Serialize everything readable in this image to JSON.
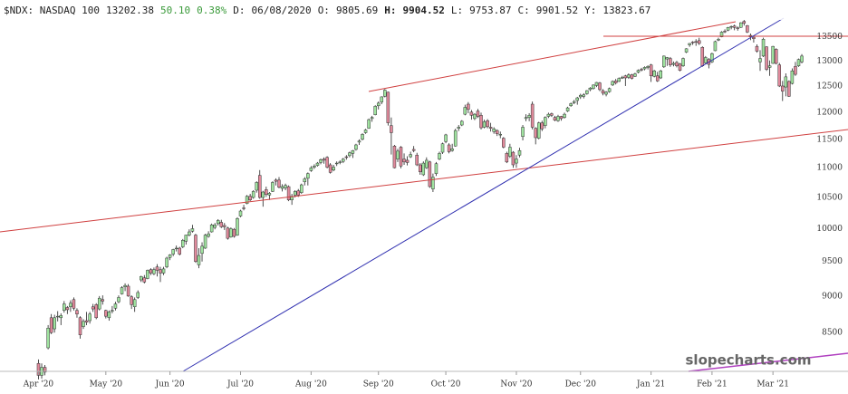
{
  "chart_data": {
    "type": "candlestick",
    "header": [
      "$NDX: NASDAQ 100",
      "13202.38",
      "50.10",
      "0.38%",
      "D:",
      "06/08/2020",
      "O:",
      "9805.69",
      "H:",
      "9904.52",
      "L:",
      "9753.87",
      "C:",
      "9901.52",
      "Y:",
      "13823.67"
    ],
    "watermark": "slopecharts.com",
    "up_color": "#9fe39f",
    "down_color": "#e0899b",
    "log_scale": true,
    "grid": false,
    "ylim": [
      8000,
      14300
    ],
    "yticks": [
      13500,
      13000,
      12500,
      12000,
      11500,
      11000,
      10500,
      10000,
      9500,
      9000,
      8500
    ],
    "xlim": [
      -12,
      252.4
    ],
    "xticks": [
      {
        "value": 0,
        "label": "Apr '20"
      },
      {
        "value": 21,
        "label": "May '20"
      },
      {
        "value": 41,
        "label": "Jun '20"
      },
      {
        "value": 63,
        "label": "Jul '20"
      },
      {
        "value": 85,
        "label": "Aug '20"
      },
      {
        "value": 106,
        "label": "Sep '20"
      },
      {
        "value": 127,
        "label": "Oct '20"
      },
      {
        "value": 149,
        "label": "Nov '20"
      },
      {
        "value": 169,
        "label": "Dec '20"
      },
      {
        "value": 191,
        "label": "Jan '21"
      },
      {
        "value": 210,
        "label": "Feb '21"
      },
      {
        "value": 229,
        "label": "Mar '21"
      }
    ],
    "candles": [
      [
        8100,
        8150,
        7900,
        7950
      ],
      [
        7950,
        8100,
        7910,
        8050
      ],
      [
        8050,
        8080,
        7950,
        7990
      ],
      [
        8300,
        8600,
        8280,
        8560
      ],
      [
        8700,
        8750,
        8480,
        8500
      ],
      [
        8550,
        8740,
        8500,
        8700
      ],
      [
        8720,
        8790,
        8650,
        8720
      ],
      [
        8700,
        8760,
        8600,
        8730
      ],
      [
        8800,
        8930,
        8770,
        8890
      ],
      [
        8840,
        8860,
        8750,
        8810
      ],
      [
        8850,
        8940,
        8780,
        8900
      ],
      [
        8950,
        8980,
        8800,
        8830
      ],
      [
        8800,
        8830,
        8700,
        8750
      ],
      [
        8700,
        8720,
        8420,
        8470
      ],
      [
        8580,
        8680,
        8550,
        8650
      ],
      [
        8660,
        8780,
        8600,
        8640
      ],
      [
        8660,
        8780,
        8620,
        8750
      ],
      [
        8850,
        8890,
        8780,
        8820
      ],
      [
        8880,
        8900,
        8680,
        8700
      ],
      [
        8820,
        9000,
        8800,
        8970
      ],
      [
        8950,
        9010,
        8880,
        8930
      ],
      [
        8800,
        8810,
        8690,
        8720
      ],
      [
        8700,
        8800,
        8660,
        8780
      ],
      [
        8800,
        8860,
        8760,
        8800
      ],
      [
        8830,
        8920,
        8800,
        8890
      ],
      [
        8920,
        9010,
        8900,
        8980
      ],
      [
        9030,
        9140,
        9020,
        9120
      ],
      [
        9130,
        9180,
        9070,
        9150
      ],
      [
        9140,
        9170,
        8990,
        9000
      ],
      [
        8990,
        9010,
        8820,
        8880
      ],
      [
        8850,
        8980,
        8780,
        8950
      ],
      [
        8980,
        9080,
        8960,
        9050
      ],
      [
        9230,
        9290,
        9200,
        9280
      ],
      [
        9260,
        9300,
        9180,
        9200
      ],
      [
        9250,
        9380,
        9240,
        9370
      ],
      [
        9380,
        9400,
        9300,
        9330
      ],
      [
        9320,
        9410,
        9300,
        9380
      ],
      [
        9420,
        9460,
        9280,
        9370
      ],
      [
        9380,
        9420,
        9200,
        9330
      ],
      [
        9330,
        9420,
        9300,
        9390
      ],
      [
        9420,
        9570,
        9400,
        9550
      ],
      [
        9560,
        9610,
        9520,
        9600
      ],
      [
        9610,
        9690,
        9580,
        9680
      ],
      [
        9690,
        9740,
        9650,
        9700
      ],
      [
        9700,
        9720,
        9590,
        9610
      ],
      [
        9720,
        9840,
        9700,
        9820
      ],
      [
        9805.69,
        9904.52,
        9753.87,
        9901.52
      ],
      [
        9900,
        9990,
        9880,
        9950
      ],
      [
        9960,
        10060,
        9940,
        10000
      ],
      [
        9900,
        9920,
        9480,
        9500
      ],
      [
        9450,
        9700,
        9400,
        9590
      ],
      [
        9620,
        9790,
        9500,
        9730
      ],
      [
        9700,
        9920,
        9690,
        9900
      ],
      [
        9880,
        9960,
        9860,
        9920
      ],
      [
        9950,
        10080,
        9940,
        10060
      ],
      [
        10020,
        10090,
        9990,
        10060
      ],
      [
        10080,
        10150,
        10050,
        10130
      ],
      [
        10100,
        10140,
        10010,
        10030
      ],
      [
        10050,
        10090,
        9980,
        10030
      ],
      [
        10010,
        10030,
        9830,
        9850
      ],
      [
        9870,
        10020,
        9860,
        10000
      ],
      [
        9990,
        10010,
        9860,
        9880
      ],
      [
        9900,
        10180,
        9890,
        10160
      ],
      [
        10200,
        10300,
        10180,
        10280
      ],
      [
        10330,
        10380,
        10290,
        10320
      ],
      [
        10400,
        10540,
        10390,
        10520
      ],
      [
        10520,
        10560,
        10440,
        10460
      ],
      [
        10500,
        10620,
        10480,
        10600
      ],
      [
        10620,
        10770,
        10580,
        10750
      ],
      [
        10870,
        10960,
        10480,
        10500
      ],
      [
        10500,
        10610,
        10350,
        10590
      ],
      [
        10630,
        10680,
        10510,
        10550
      ],
      [
        10540,
        10590,
        10460,
        10570
      ],
      [
        10600,
        10770,
        10590,
        10750
      ],
      [
        10790,
        10820,
        10700,
        10770
      ],
      [
        10790,
        10840,
        10650,
        10670
      ],
      [
        10650,
        10720,
        10600,
        10680
      ],
      [
        10660,
        10730,
        10620,
        10700
      ],
      [
        10680,
        10700,
        10440,
        10460
      ],
      [
        10460,
        10560,
        10380,
        10520
      ],
      [
        10540,
        10620,
        10500,
        10600
      ],
      [
        10610,
        10640,
        10510,
        10540
      ],
      [
        10580,
        10730,
        10560,
        10710
      ],
      [
        10760,
        10840,
        10700,
        10810
      ],
      [
        10820,
        10920,
        10700,
        10900
      ],
      [
        10950,
        11030,
        10930,
        11000
      ],
      [
        11010,
        11060,
        10980,
        11030
      ],
      [
        11040,
        11100,
        11020,
        11080
      ],
      [
        11090,
        11160,
        11060,
        11140
      ],
      [
        11150,
        11180,
        11070,
        11130
      ],
      [
        11180,
        11200,
        10990,
        11010
      ],
      [
        11050,
        11080,
        10900,
        10920
      ],
      [
        10960,
        11050,
        10940,
        11010
      ],
      [
        11070,
        11110,
        11030,
        11080
      ],
      [
        11100,
        11130,
        11060,
        11100
      ],
      [
        11110,
        11170,
        11080,
        11150
      ],
      [
        11190,
        11220,
        11140,
        11180
      ],
      [
        11210,
        11280,
        11180,
        11260
      ],
      [
        11250,
        11310,
        11170,
        11300
      ],
      [
        11320,
        11420,
        11300,
        11400
      ],
      [
        11450,
        11500,
        11400,
        11470
      ],
      [
        11500,
        11610,
        11480,
        11590
      ],
      [
        11620,
        11690,
        11600,
        11670
      ],
      [
        11700,
        11880,
        11690,
        11860
      ],
      [
        11880,
        11930,
        11820,
        11900
      ],
      [
        11950,
        12130,
        11940,
        12110
      ],
      [
        12120,
        12200,
        12050,
        12170
      ],
      [
        12190,
        12300,
        12150,
        12290
      ],
      [
        12300,
        12440,
        12280,
        12420
      ],
      [
        12380,
        12390,
        11750,
        11800
      ],
      [
        11750,
        11900,
        11230,
        11620
      ],
      [
        11380,
        11400,
        10990,
        11000
      ],
      [
        11150,
        11330,
        11100,
        11290
      ],
      [
        11360,
        11380,
        10990,
        11030
      ],
      [
        11150,
        11250,
        11050,
        11100
      ],
      [
        11130,
        11200,
        11040,
        11090
      ],
      [
        11190,
        11280,
        11170,
        11230
      ],
      [
        11320,
        11380,
        11270,
        11300
      ],
      [
        11220,
        11260,
        11030,
        11050
      ],
      [
        11050,
        11080,
        10880,
        10930
      ],
      [
        10880,
        11110,
        10860,
        11080
      ],
      [
        11000,
        11180,
        10980,
        11130
      ],
      [
        11100,
        11120,
        10660,
        10680
      ],
      [
        10640,
        10900,
        10590,
        10840
      ],
      [
        10900,
        11100,
        10860,
        11070
      ],
      [
        11150,
        11280,
        11130,
        11250
      ],
      [
        11270,
        11440,
        11240,
        11420
      ],
      [
        11460,
        11600,
        11430,
        11580
      ],
      [
        11400,
        11430,
        11250,
        11280
      ],
      [
        11300,
        11420,
        11280,
        11330
      ],
      [
        11380,
        11690,
        11370,
        11660
      ],
      [
        11700,
        11760,
        11650,
        11720
      ],
      [
        11760,
        11850,
        11740,
        11830
      ],
      [
        11960,
        12140,
        11940,
        12090
      ],
      [
        12150,
        12190,
        11980,
        12050
      ],
      [
        12000,
        12040,
        11860,
        11940
      ],
      [
        11880,
        11980,
        11850,
        11960
      ],
      [
        12020,
        12060,
        11890,
        11920
      ],
      [
        11940,
        11990,
        11680,
        11710
      ],
      [
        11720,
        11860,
        11700,
        11820
      ],
      [
        11840,
        11870,
        11700,
        11730
      ],
      [
        11720,
        11800,
        11640,
        11700
      ],
      [
        11640,
        11720,
        11600,
        11690
      ],
      [
        11660,
        11680,
        11560,
        11600
      ],
      [
        11580,
        11640,
        11520,
        11590
      ],
      [
        11520,
        11540,
        11340,
        11360
      ],
      [
        11250,
        11280,
        11080,
        11100
      ],
      [
        11200,
        11420,
        11170,
        11360
      ],
      [
        11270,
        11290,
        11000,
        11050
      ],
      [
        11080,
        11220,
        11000,
        11150
      ],
      [
        11220,
        11350,
        11180,
        11300
      ],
      [
        11550,
        11760,
        11480,
        11720
      ],
      [
        11880,
        11960,
        11830,
        11900
      ],
      [
        11900,
        11980,
        11830,
        11940
      ],
      [
        12150,
        12200,
        11680,
        11720
      ],
      [
        11700,
        11720,
        11410,
        11530
      ],
      [
        11520,
        11820,
        11500,
        11800
      ],
      [
        11800,
        11840,
        11650,
        11690
      ],
      [
        11750,
        11920,
        11700,
        11900
      ],
      [
        11920,
        11990,
        11890,
        11960
      ],
      [
        11970,
        11990,
        11910,
        11940
      ],
      [
        11900,
        11930,
        11830,
        11850
      ],
      [
        11840,
        11950,
        11820,
        11920
      ],
      [
        11920,
        11930,
        11840,
        11880
      ],
      [
        11900,
        11990,
        11880,
        11960
      ],
      [
        12020,
        12100,
        12000,
        12080
      ],
      [
        12120,
        12180,
        12100,
        12160
      ],
      [
        12180,
        12230,
        12150,
        12200
      ],
      [
        12220,
        12290,
        12140,
        12270
      ],
      [
        12290,
        12350,
        12250,
        12320
      ],
      [
        12300,
        12360,
        12260,
        12330
      ],
      [
        12350,
        12420,
        12330,
        12410
      ],
      [
        12430,
        12480,
        12400,
        12460
      ],
      [
        12450,
        12530,
        12430,
        12520
      ],
      [
        12510,
        12580,
        12480,
        12570
      ],
      [
        12560,
        12580,
        12400,
        12430
      ],
      [
        12410,
        12440,
        12320,
        12360
      ],
      [
        12340,
        12400,
        12300,
        12380
      ],
      [
        12390,
        12470,
        12370,
        12450
      ],
      [
        12520,
        12610,
        12500,
        12590
      ],
      [
        12600,
        12640,
        12530,
        12560
      ],
      [
        12590,
        12670,
        12580,
        12650
      ],
      [
        12660,
        12700,
        12640,
        12670
      ],
      [
        12700,
        12720,
        12500,
        12660
      ],
      [
        12670,
        12750,
        12640,
        12720
      ],
      [
        12720,
        12740,
        12630,
        12650
      ],
      [
        12690,
        12760,
        12680,
        12740
      ],
      [
        12770,
        12830,
        12750,
        12810
      ],
      [
        12830,
        12860,
        12790,
        12820
      ],
      [
        12840,
        12890,
        12810,
        12870
      ],
      [
        12870,
        12910,
        12830,
        12890
      ],
      [
        12920,
        12940,
        12580,
        12700
      ],
      [
        12690,
        12820,
        12670,
        12800
      ],
      [
        12700,
        12780,
        12580,
        12600
      ],
      [
        12660,
        12820,
        12640,
        12800
      ],
      [
        12880,
        13110,
        12860,
        13100
      ],
      [
        13040,
        13080,
        12900,
        13070
      ],
      [
        13050,
        13080,
        12880,
        12920
      ],
      [
        12930,
        12990,
        12890,
        12950
      ],
      [
        12970,
        13000,
        12870,
        12900
      ],
      [
        12940,
        12960,
        12790,
        12810
      ],
      [
        12900,
        13070,
        12880,
        13050
      ],
      [
        13180,
        13260,
        13160,
        13250
      ],
      [
        13330,
        13370,
        13290,
        13360
      ],
      [
        13390,
        13410,
        13330,
        13380
      ],
      [
        13400,
        13450,
        13310,
        13390
      ],
      [
        13420,
        13480,
        13330,
        13360
      ],
      [
        13280,
        13300,
        12880,
        12900
      ],
      [
        12960,
        13100,
        12940,
        13070
      ],
      [
        13030,
        13060,
        12850,
        12930
      ],
      [
        12980,
        13170,
        12960,
        13150
      ],
      [
        13210,
        13420,
        13200,
        13400
      ],
      [
        13430,
        13480,
        13410,
        13450
      ],
      [
        13500,
        13620,
        13490,
        13600
      ],
      [
        13620,
        13660,
        13580,
        13610
      ],
      [
        13640,
        13710,
        13620,
        13700
      ],
      [
        13710,
        13740,
        13660,
        13720
      ],
      [
        13730,
        13760,
        13640,
        13700
      ],
      [
        13690,
        13720,
        13630,
        13680
      ],
      [
        13700,
        13810,
        13690,
        13800
      ],
      [
        13830,
        13860,
        13740,
        13790
      ],
      [
        13740,
        13750,
        13580,
        13600
      ],
      [
        13500,
        13570,
        13430,
        13530
      ],
      [
        13490,
        13510,
        13380,
        13460
      ],
      [
        13300,
        13340,
        13170,
        13200
      ],
      [
        12980,
        13220,
        12800,
        13050
      ],
      [
        13100,
        13480,
        13080,
        13450
      ],
      [
        13290,
        13300,
        12800,
        12830
      ],
      [
        12870,
        13010,
        12700,
        12900
      ],
      [
        12950,
        13310,
        12940,
        13300
      ],
      [
        13240,
        13260,
        12930,
        12950
      ],
      [
        12920,
        12960,
        12480,
        12500
      ],
      [
        12500,
        12600,
        12210,
        12400
      ],
      [
        12480,
        12750,
        12300,
        12680
      ],
      [
        12590,
        12610,
        12290,
        12300
      ],
      [
        12550,
        12850,
        12530,
        12800
      ],
      [
        12890,
        12980,
        12700,
        12730
      ],
      [
        12900,
        13050,
        12880,
        13030
      ],
      [
        12980,
        13140,
        12950,
        13100
      ]
    ]
  }
}
